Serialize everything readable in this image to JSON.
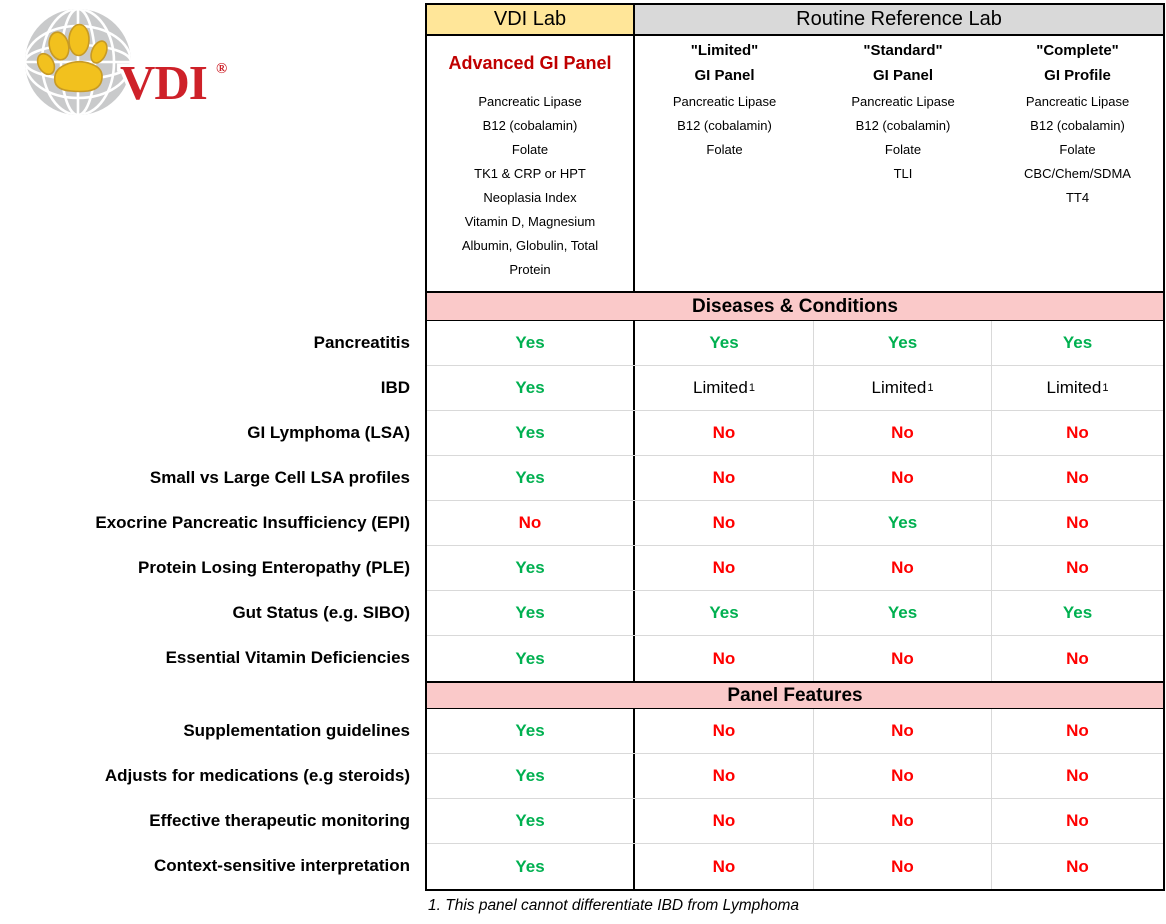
{
  "logo": {
    "brand": "VDI",
    "registered": "®",
    "colors": {
      "globe_gray": "#C9CACB",
      "grid_white": "#FFFFFF",
      "paw_yellow": "#F2C11E",
      "paw_edge": "#C79A25",
      "brand_red": "#CE2129"
    }
  },
  "header": {
    "vdi_lab": "VDI Lab",
    "reference_lab": "Routine Reference Lab"
  },
  "columns": [
    {
      "title_lines": [
        "Advanced GI Panel"
      ],
      "tests": [
        "Pancreatic Lipase",
        "B12 (cobalamin)",
        "Folate",
        "TK1 & CRP or HPT",
        "Neoplasia Index",
        "Vitamin D, Magnesium",
        "Albumin, Globulin, Total Protein"
      ]
    },
    {
      "title_lines": [
        "\"Limited\"",
        "GI Panel"
      ],
      "tests": [
        "Pancreatic Lipase",
        "B12 (cobalamin)",
        "Folate"
      ]
    },
    {
      "title_lines": [
        "\"Standard\"",
        "GI Panel"
      ],
      "tests": [
        "Pancreatic Lipase",
        "B12 (cobalamin)",
        "Folate",
        "TLI"
      ]
    },
    {
      "title_lines": [
        "\"Complete\"",
        "GI Profile"
      ],
      "tests": [
        "Pancreatic Lipase",
        "B12 (cobalamin)",
        "Folate",
        "CBC/Chem/SDMA",
        "TT4"
      ]
    }
  ],
  "sections": [
    {
      "banner": "Diseases & Conditions",
      "rows": [
        {
          "label": "Pancreatitis",
          "values": [
            "Yes",
            "Yes",
            "Yes",
            "Yes"
          ]
        },
        {
          "label": "IBD",
          "values": [
            "Yes",
            "Limited¹",
            "Limited¹",
            "Limited¹"
          ]
        },
        {
          "label": "GI Lymphoma (LSA)",
          "values": [
            "Yes",
            "No",
            "No",
            "No"
          ]
        },
        {
          "label": "Small vs Large Cell LSA profiles",
          "values": [
            "Yes",
            "No",
            "No",
            "No"
          ]
        },
        {
          "label": "Exocrine Pancreatic Insufficiency (EPI)",
          "values": [
            "No",
            "No",
            "Yes",
            "No"
          ]
        },
        {
          "label": "Protein Losing Enteropathy (PLE)",
          "values": [
            "Yes",
            "No",
            "No",
            "No"
          ]
        },
        {
          "label": "Gut Status (e.g. SIBO)",
          "values": [
            "Yes",
            "Yes",
            "Yes",
            "Yes"
          ]
        },
        {
          "label": "Essential Vitamin Deficiencies",
          "values": [
            "Yes",
            "No",
            "No",
            "No"
          ]
        }
      ]
    },
    {
      "banner": "Panel Features",
      "rows": [
        {
          "label": "Supplementation guidelines",
          "values": [
            "Yes",
            "No",
            "No",
            "No"
          ]
        },
        {
          "label": "Adjusts for medications (e.g steroids)",
          "values": [
            "Yes",
            "No",
            "No",
            "No"
          ]
        },
        {
          "label": "Effective therapeutic monitoring",
          "values": [
            "Yes",
            "No",
            "No",
            "No"
          ]
        },
        {
          "label": "Context-sensitive interpretation",
          "values": [
            "Yes",
            "No",
            "No",
            "No"
          ]
        }
      ]
    }
  ],
  "footnote": "1. This panel cannot differentiate IBD from Lymphoma",
  "colors": {
    "vdi_header_yellow": "#FFE699",
    "reference_header_gray": "#D9D9D9",
    "banner_pink": "#FAC9C9",
    "yes_green": "#00B050",
    "no_red": "#FF0000",
    "advanced_panel_red": "#C00000",
    "gridline_gray": "#D9D9D9",
    "border_black": "#000000"
  }
}
